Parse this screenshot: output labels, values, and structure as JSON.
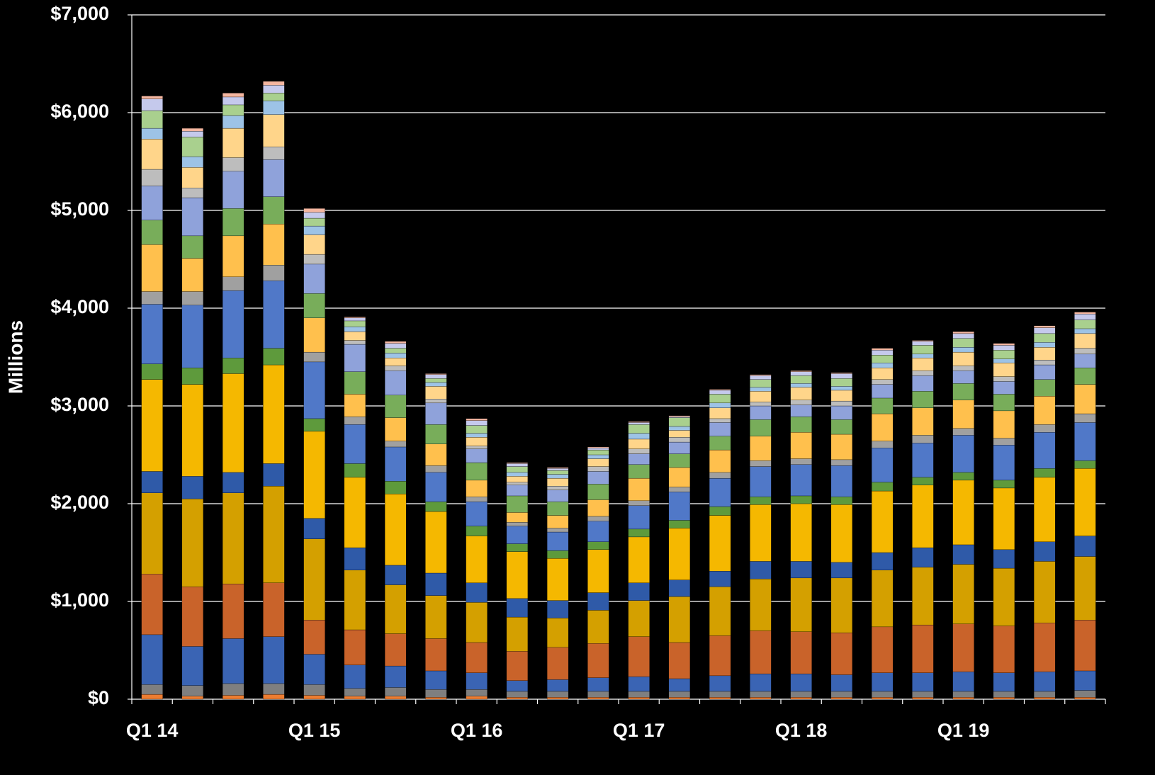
{
  "chart_data": {
    "type": "stacked_bar",
    "y_label": "Millions",
    "categories": [
      "Q1 14",
      null,
      null,
      null,
      "Q1 15",
      null,
      null,
      null,
      "Q1 16",
      null,
      null,
      null,
      "Q1 17",
      null,
      null,
      null,
      "Q1 18",
      null,
      null,
      null,
      "Q1 19",
      null,
      null,
      null
    ],
    "ylim": [
      0,
      7000
    ],
    "yticks": [
      {
        "value": 0,
        "label": "$0"
      },
      {
        "value": 1000,
        "label": "$1,000"
      },
      {
        "value": 2000,
        "label": "$2,000"
      },
      {
        "value": 3000,
        "label": "$3,000"
      },
      {
        "value": 4000,
        "label": "$4,000"
      },
      {
        "value": 5000,
        "label": "$5,000"
      },
      {
        "value": 6000,
        "label": "$6,000"
      },
      {
        "value": 7000,
        "label": "$7,000"
      }
    ],
    "grid": true,
    "series": [
      {
        "color": "#ed7d31",
        "values": [
          50,
          30,
          40,
          50,
          40,
          30,
          30,
          20,
          30,
          20,
          20,
          20,
          20,
          20,
          20,
          20,
          20,
          20,
          20,
          20,
          20,
          20,
          20,
          20
        ]
      },
      {
        "color": "#7f7f7f",
        "values": [
          100,
          110,
          120,
          110,
          110,
          80,
          90,
          80,
          70,
          60,
          60,
          60,
          60,
          60,
          60,
          60,
          60,
          60,
          60,
          60,
          60,
          60,
          60,
          70
        ]
      },
      {
        "color": "#3a64b4",
        "values": [
          510,
          400,
          460,
          480,
          310,
          240,
          220,
          190,
          170,
          110,
          120,
          140,
          150,
          130,
          160,
          180,
          180,
          170,
          190,
          190,
          200,
          190,
          200,
          200
        ]
      },
      {
        "color": "#c9632a",
        "values": [
          620,
          610,
          560,
          550,
          350,
          360,
          330,
          330,
          310,
          300,
          330,
          350,
          410,
          370,
          410,
          440,
          430,
          430,
          470,
          490,
          490,
          480,
          500,
          520
        ]
      },
      {
        "color": "#d4a000",
        "values": [
          830,
          900,
          930,
          990,
          830,
          610,
          500,
          440,
          410,
          350,
          300,
          340,
          370,
          470,
          500,
          530,
          550,
          560,
          580,
          590,
          610,
          590,
          630,
          650
        ]
      },
      {
        "color": "#2f5aa8",
        "values": [
          220,
          230,
          210,
          230,
          210,
          230,
          200,
          230,
          200,
          190,
          180,
          180,
          180,
          170,
          160,
          180,
          170,
          160,
          180,
          200,
          200,
          190,
          200,
          210
        ]
      },
      {
        "color": "#f5b800",
        "values": [
          940,
          940,
          1010,
          1010,
          890,
          720,
          730,
          630,
          480,
          480,
          430,
          440,
          470,
          530,
          570,
          580,
          590,
          590,
          630,
          640,
          660,
          630,
          660,
          690
        ]
      },
      {
        "color": "#5e9a3c",
        "values": [
          160,
          170,
          160,
          170,
          130,
          140,
          130,
          100,
          100,
          80,
          80,
          80,
          80,
          80,
          90,
          80,
          80,
          80,
          90,
          80,
          80,
          80,
          90,
          80
        ]
      },
      {
        "color": "#5078c8",
        "values": [
          610,
          640,
          690,
          690,
          580,
          400,
          350,
          300,
          250,
          180,
          190,
          210,
          240,
          290,
          290,
          310,
          320,
          320,
          350,
          350,
          380,
          360,
          370,
          390
        ]
      },
      {
        "color": "#a0a0a0",
        "values": [
          130,
          140,
          140,
          160,
          100,
          80,
          60,
          70,
          50,
          40,
          40,
          50,
          50,
          50,
          60,
          60,
          60,
          60,
          70,
          80,
          70,
          70,
          80,
          90
        ]
      },
      {
        "color": "#ffc04d",
        "values": [
          480,
          340,
          420,
          420,
          350,
          230,
          240,
          220,
          170,
          100,
          130,
          170,
          230,
          200,
          230,
          250,
          270,
          260,
          280,
          280,
          290,
          280,
          290,
          300
        ]
      },
      {
        "color": "#78ad5a",
        "values": [
          250,
          230,
          280,
          280,
          250,
          230,
          230,
          200,
          180,
          170,
          140,
          160,
          140,
          140,
          140,
          170,
          160,
          150,
          160,
          170,
          170,
          170,
          170,
          170
        ]
      },
      {
        "color": "#8fa2da",
        "values": [
          350,
          390,
          380,
          380,
          300,
          280,
          250,
          220,
          140,
          110,
          120,
          130,
          110,
          120,
          140,
          140,
          120,
          140,
          140,
          160,
          130,
          130,
          150,
          140
        ]
      },
      {
        "color": "#bdbdbd",
        "values": [
          170,
          100,
          140,
          130,
          100,
          40,
          50,
          40,
          30,
          30,
          40,
          50,
          50,
          50,
          40,
          40,
          50,
          50,
          50,
          50,
          50,
          50,
          50,
          60
        ]
      },
      {
        "color": "#ffd58a",
        "values": [
          310,
          210,
          300,
          330,
          200,
          90,
          80,
          130,
          90,
          60,
          80,
          80,
          100,
          70,
          110,
          110,
          130,
          110,
          120,
          130,
          140,
          140,
          130,
          150
        ]
      },
      {
        "color": "#9dc3e6",
        "values": [
          110,
          110,
          130,
          140,
          90,
          50,
          50,
          40,
          40,
          40,
          40,
          40,
          60,
          40,
          50,
          40,
          40,
          40,
          50,
          40,
          50,
          40,
          50,
          50
        ]
      },
      {
        "color": "#a9d08e",
        "values": [
          180,
          200,
          110,
          80,
          80,
          60,
          50,
          40,
          80,
          60,
          40,
          50,
          90,
          90,
          90,
          80,
          80,
          80,
          80,
          90,
          90,
          90,
          90,
          90
        ]
      },
      {
        "color": "#c5c9ec",
        "values": [
          120,
          60,
          80,
          80,
          60,
          30,
          50,
          40,
          50,
          30,
          20,
          20,
          20,
          10,
          40,
          40,
          40,
          50,
          50,
          40,
          50,
          50,
          60,
          60
        ]
      },
      {
        "color": "#f4b6a0",
        "values": [
          30,
          30,
          40,
          40,
          40,
          10,
          20,
          10,
          20,
          10,
          10,
          10,
          10,
          10,
          10,
          10,
          10,
          10,
          20,
          10,
          20,
          20,
          20,
          20
        ]
      }
    ]
  }
}
